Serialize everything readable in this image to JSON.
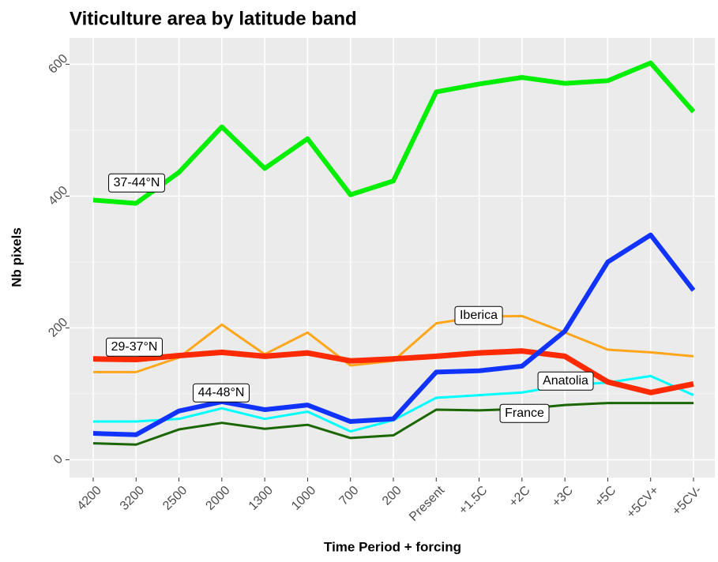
{
  "chart_data": {
    "type": "line",
    "title": "Viticulture area by latitude band",
    "x_label": "Time Period + forcing",
    "y_label": "Nb pixels",
    "categories": [
      "4200",
      "3200",
      "2500",
      "2000",
      "1300",
      "1000",
      "700",
      "200",
      "Present",
      "+1.5C",
      "+2C",
      "+3C",
      "+5C",
      "+5CV+",
      "+5CV-"
    ],
    "ylim": [
      -27,
      640
    ],
    "yticks": [
      0,
      200,
      400,
      600
    ],
    "grid": true,
    "series": [
      {
        "name": "37-44°N",
        "color": "#00ee00",
        "line_width": 6,
        "values": [
          394,
          389,
          436,
          505,
          442,
          487,
          402,
          423,
          558,
          570,
          580,
          571,
          575,
          602,
          528
        ]
      },
      {
        "name": "29-37°N",
        "color": "#ff2a00",
        "line_width": 7,
        "values": [
          153,
          152,
          158,
          163,
          157,
          162,
          150,
          153,
          157,
          162,
          165,
          157,
          118,
          102,
          115
        ]
      },
      {
        "name": "44-48°N",
        "color": "#1133ff",
        "line_width": 6,
        "values": [
          40,
          38,
          74,
          88,
          76,
          83,
          58,
          62,
          133,
          135,
          142,
          195,
          300,
          341,
          257
        ]
      },
      {
        "name": "Iberica",
        "color": "#ffa61a",
        "line_width": 3,
        "values": [
          133,
          133,
          155,
          205,
          160,
          193,
          143,
          150,
          207,
          217,
          218,
          193,
          167,
          163,
          157
        ]
      },
      {
        "name": "Anatolia",
        "color": "#00ffff",
        "line_width": 3,
        "values": [
          58,
          58,
          62,
          78,
          62,
          73,
          43,
          60,
          94,
          98,
          102,
          113,
          117,
          127,
          98
        ]
      },
      {
        "name": "France",
        "color": "#1a6600",
        "line_width": 3,
        "values": [
          25,
          23,
          46,
          56,
          47,
          53,
          33,
          37,
          76,
          75,
          77,
          83,
          86,
          86,
          86
        ]
      }
    ]
  }
}
